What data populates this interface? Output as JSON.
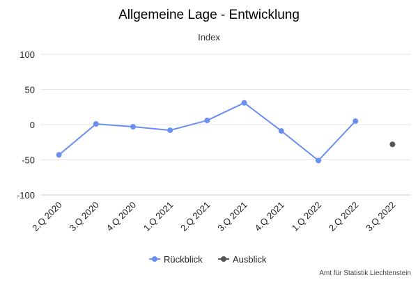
{
  "chart_data": {
    "type": "line",
    "title": "Allgemeine Lage - Entwicklung",
    "subtitle": "Index",
    "xlabel": "",
    "ylabel": "",
    "categories": [
      "2.Q 2020",
      "3.Q 2020",
      "4.Q 2020",
      "1.Q 2021",
      "2.Q 2021",
      "3.Q 2021",
      "4.Q 2021",
      "1.Q 2022",
      "2.Q 2022",
      "3.Q 2022"
    ],
    "ylim": [
      -100,
      100
    ],
    "yticks": [
      "100",
      "50",
      "0",
      "-50",
      "-100"
    ],
    "grid": true,
    "legend_position": "bottom",
    "series": [
      {
        "name": "Rückblick",
        "color": "#6b8ff0",
        "values": [
          -43,
          1,
          -3,
          -8,
          6,
          31,
          -9,
          -51,
          5,
          null
        ]
      },
      {
        "name": "Ausblick",
        "color": "#555555",
        "values": [
          null,
          null,
          null,
          null,
          null,
          null,
          null,
          null,
          null,
          -28
        ]
      }
    ],
    "credits": "Amt für Statistik Liechtenstein"
  }
}
